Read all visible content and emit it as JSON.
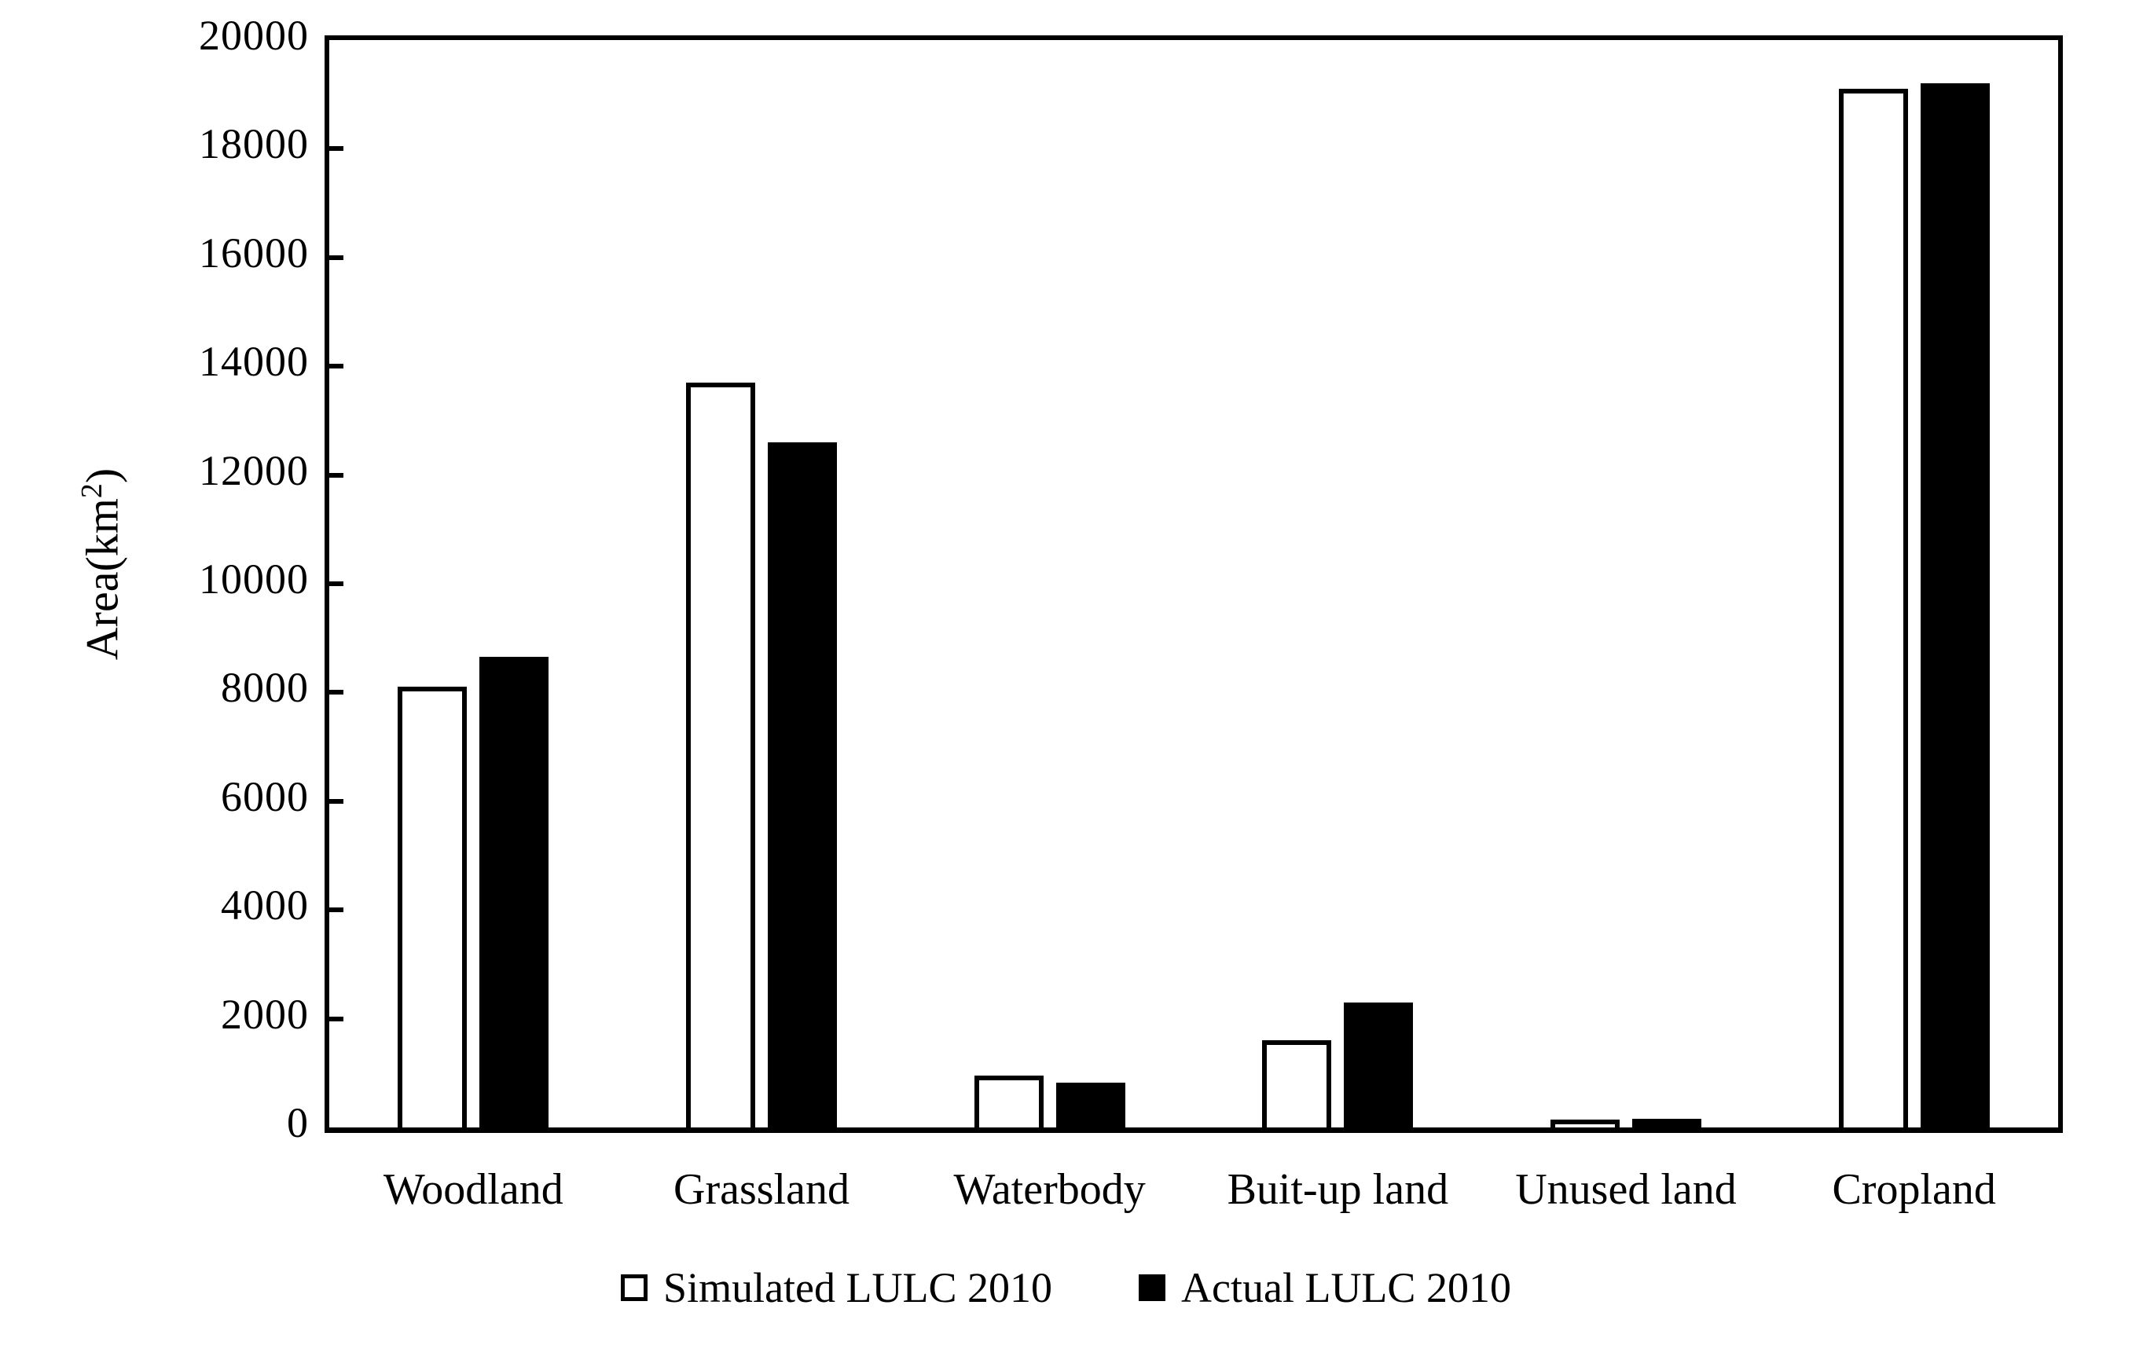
{
  "chart_data": {
    "type": "bar",
    "title": "",
    "ylabel": {
      "text": "Area(km²)",
      "prefix": "Area(km",
      "superscript": "2",
      "suffix": ")"
    },
    "xlabel": "",
    "categories": [
      "Woodland",
      "Grassland",
      "Waterbody",
      "Buit-up land",
      "Unused land",
      "Cropland"
    ],
    "series": [
      {
        "name": "Simulated LULC 2010",
        "fill": "#ffffff",
        "border": "#000000",
        "values": [
          8100,
          13700,
          950,
          1600,
          150,
          19100
        ]
      },
      {
        "name": "Actual LULC 2010",
        "fill": "#000000",
        "border": "#000000",
        "values": [
          8650,
          12600,
          830,
          2300,
          160,
          19200
        ]
      }
    ],
    "ylim": [
      0,
      20000
    ],
    "yticks": [
      0,
      2000,
      4000,
      6000,
      8000,
      10000,
      12000,
      14000,
      16000,
      18000,
      20000
    ],
    "grid": false,
    "legend_position": "bottom",
    "axis_color": "#000000",
    "background_color": "#ffffff"
  }
}
